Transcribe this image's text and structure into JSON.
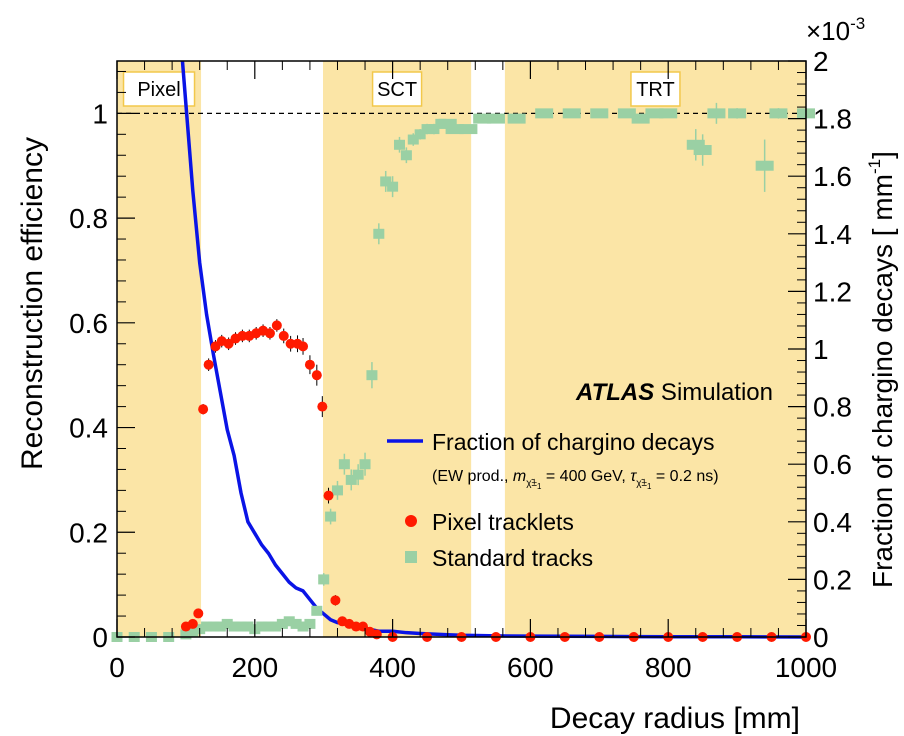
{
  "chart_data": {
    "type": "scatter",
    "xlabel": "Decay radius [mm]",
    "ylabel": "Reconstruction efficiency",
    "ylabel_right": "Fraction of chargino decays [ mm",
    "ylabel_right_sup": "-1",
    "ylabel_right_end": "]",
    "right_multiplier": "×10",
    "right_multiplier_exp": "-3",
    "xlim": [
      0,
      1000
    ],
    "ylim": [
      0,
      1.1
    ],
    "ylim_right": [
      0,
      2.0
    ],
    "x_ticks": [
      0,
      200,
      400,
      600,
      800,
      1000
    ],
    "y_ticks": [
      0,
      0.2,
      0.4,
      0.6,
      0.8,
      1
    ],
    "y_right_ticks": [
      0,
      0.2,
      0.4,
      0.6,
      0.8,
      1,
      1.2,
      1.4,
      1.6,
      1.8,
      2
    ],
    "reference_line_y": 1,
    "regions": [
      {
        "label": "Pixel",
        "x": [
          0,
          122
        ],
        "color": "#fbe5a6"
      },
      {
        "label": "SCT",
        "x": [
          299,
          514
        ],
        "color": "#fbe5a6"
      },
      {
        "label": "TRT",
        "x": [
          563,
          1000
        ],
        "color": "#fbe5a6"
      }
    ],
    "annotation": {
      "bold": "ATLAS",
      "text": " Simulation"
    },
    "legend": [
      {
        "label": "Fraction of chargino decays",
        "marker": "line",
        "color": "#0a14e6"
      },
      {
        "label": "Pixel tracklets",
        "marker": "circle",
        "color": "#ff1a00"
      },
      {
        "label": "Standard tracks",
        "marker": "square",
        "color": "#9ad0a4"
      }
    ],
    "legend_note": {
      "prefix": "(EW prod., ",
      "m": "m",
      "m_sub": "χ̃±",
      "m_sub2": "1",
      "m_val": " = 400 GeV, ",
      "tau": "τ",
      "tau_val": " = 0.2 ns)"
    },
    "series": [
      {
        "name": "Fraction of chargino decays",
        "axis": "right",
        "color": "#0a14e6",
        "x": [
          95,
          100,
          110,
          120,
          130,
          140,
          150,
          160,
          170,
          180,
          190,
          200,
          210,
          220,
          230,
          240,
          250,
          260,
          270,
          280,
          290,
          300,
          310,
          320,
          330,
          340,
          350,
          360,
          380,
          400,
          420,
          440,
          460,
          480,
          500,
          550,
          600,
          700,
          800,
          900,
          1000
        ],
        "y": [
          2.0,
          1.85,
          1.55,
          1.3,
          1.12,
          0.98,
          0.85,
          0.72,
          0.63,
          0.5,
          0.4,
          0.36,
          0.32,
          0.29,
          0.25,
          0.22,
          0.19,
          0.17,
          0.16,
          0.13,
          0.1,
          0.08,
          0.06,
          0.05,
          0.05,
          0.04,
          0.04,
          0.03,
          0.02,
          0.02,
          0.015,
          0.012,
          0.01,
          0.008,
          0.006,
          0.004,
          0.003,
          0.002,
          0.001,
          0.001,
          0.0
        ]
      },
      {
        "name": "Pixel tracklets",
        "axis": "left",
        "color": "#ff1a00",
        "x": [
          100,
          110,
          118,
          125,
          133,
          143,
          152,
          162,
          172,
          182,
          192,
          202,
          212,
          222,
          232,
          242,
          252,
          262,
          270,
          280,
          290,
          298,
          307,
          317,
          327,
          337,
          347,
          357,
          367,
          377,
          400,
          450,
          500,
          550,
          600,
          650,
          700,
          750,
          800,
          850,
          900,
          950,
          1000
        ],
        "y": [
          0.02,
          0.025,
          0.045,
          0.435,
          0.52,
          0.555,
          0.565,
          0.56,
          0.57,
          0.575,
          0.575,
          0.58,
          0.585,
          0.58,
          0.595,
          0.575,
          0.56,
          0.56,
          0.555,
          0.52,
          0.5,
          0.44,
          0.27,
          0.07,
          0.03,
          0.025,
          0.02,
          0.02,
          0.01,
          0.005,
          0.0,
          0.0,
          0.0,
          0.0,
          0.0,
          0.0,
          0.0,
          0.0,
          0.0,
          0.0,
          0.0,
          0.0,
          0.0
        ],
        "y_err": [
          0.004,
          0.005,
          0.006,
          0.01,
          0.012,
          0.012,
          0.012,
          0.012,
          0.012,
          0.012,
          0.012,
          0.012,
          0.012,
          0.012,
          0.012,
          0.014,
          0.015,
          0.016,
          0.016,
          0.018,
          0.02,
          0.02,
          0.015,
          0.01,
          0.006,
          0.005,
          0.004,
          0.004,
          0.003,
          0.002,
          0,
          0,
          0,
          0,
          0,
          0,
          0,
          0,
          0,
          0,
          0,
          0,
          0
        ]
      },
      {
        "name": "Standard tracks",
        "axis": "left",
        "color": "#9ad0a4",
        "x": [
          0,
          25,
          50,
          75,
          100,
          110,
          120,
          130,
          140,
          150,
          160,
          170,
          180,
          190,
          200,
          210,
          220,
          230,
          240,
          250,
          260,
          270,
          280,
          290,
          300,
          310,
          320,
          330,
          340,
          350,
          360,
          370,
          380,
          390,
          400,
          410,
          420,
          430,
          440,
          450,
          460,
          470,
          480,
          490,
          510,
          530,
          550,
          580,
          620,
          660,
          700,
          740,
          760,
          780,
          800,
          840,
          850,
          870,
          900,
          940,
          960,
          1000
        ],
        "y": [
          0.0,
          0.0,
          0.0,
          0.0,
          0.005,
          0.01,
          0.015,
          0.02,
          0.02,
          0.02,
          0.025,
          0.02,
          0.02,
          0.02,
          0.015,
          0.02,
          0.02,
          0.02,
          0.025,
          0.03,
          0.025,
          0.02,
          0.025,
          0.05,
          0.11,
          0.23,
          0.28,
          0.33,
          0.3,
          0.31,
          0.33,
          0.5,
          0.77,
          0.87,
          0.86,
          0.94,
          0.92,
          0.95,
          0.96,
          0.97,
          0.97,
          0.98,
          0.98,
          0.97,
          0.97,
          0.99,
          0.99,
          0.99,
          1.0,
          1.0,
          1.0,
          1.0,
          0.99,
          1.0,
          1.0,
          0.94,
          0.93,
          1.0,
          1.0,
          0.9,
          1.0,
          1.0
        ],
        "y_err": [
          0,
          0,
          0,
          0,
          0.003,
          0.004,
          0.005,
          0.005,
          0.005,
          0.005,
          0.006,
          0.006,
          0.006,
          0.006,
          0.006,
          0.006,
          0.006,
          0.006,
          0.006,
          0.006,
          0.006,
          0.006,
          0.006,
          0.008,
          0.012,
          0.015,
          0.018,
          0.02,
          0.02,
          0.02,
          0.022,
          0.025,
          0.02,
          0.02,
          0.02,
          0.015,
          0.015,
          0.012,
          0.01,
          0.01,
          0.01,
          0.008,
          0.006,
          0.006,
          0.005,
          0.005,
          0.005,
          0.004,
          0.003,
          0.003,
          0.003,
          0.003,
          0.004,
          0.003,
          0.003,
          0.03,
          0.03,
          0.02,
          0.01,
          0.05,
          0.01,
          0.01
        ]
      }
    ]
  }
}
